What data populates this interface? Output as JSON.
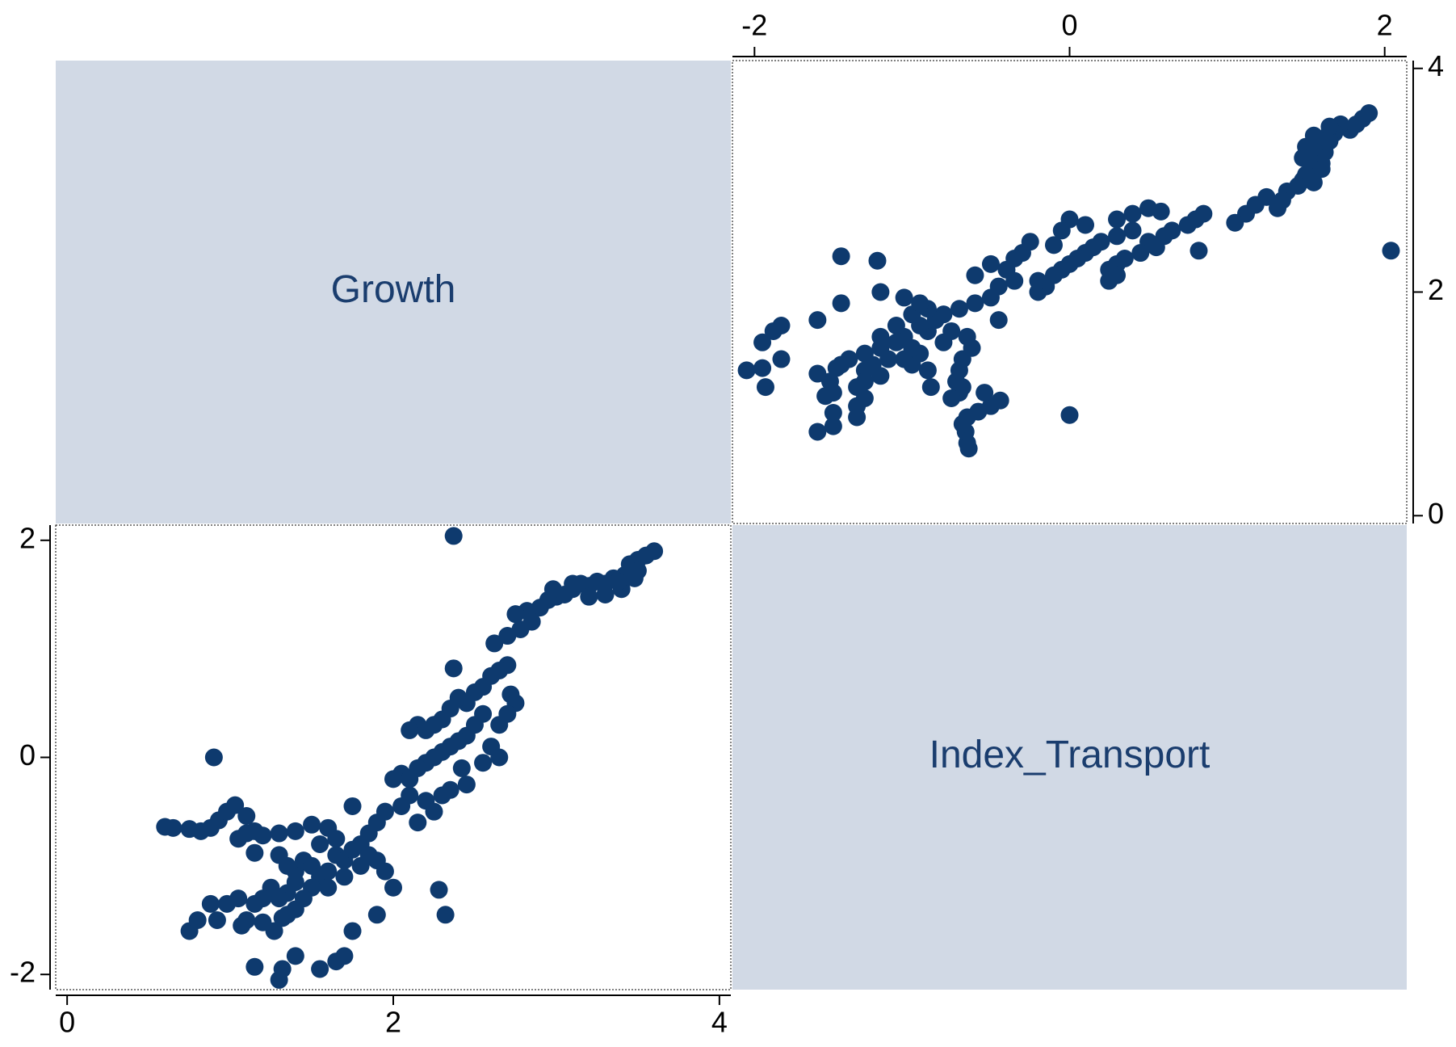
{
  "chart_data": {
    "type": "scatter-matrix",
    "color": "#0e3a6e",
    "box_color": "#d1d9e5",
    "variables": [
      {
        "label": "Growth",
        "lim": [
          -0.07,
          4.07
        ],
        "ticks": [
          0,
          2,
          4
        ],
        "values": [
          3.6,
          3.55,
          3.5,
          3.45,
          3.5,
          3.42,
          3.35,
          3.3,
          3.25,
          3.2,
          3.15,
          3.1,
          3.05,
          3.0,
          2.95,
          2.9,
          2.82,
          2.75,
          2.78,
          2.85,
          2.7,
          2.62,
          3.4,
          3.3,
          3.2,
          3.1,
          2.98,
          3.38,
          3.48,
          2.72,
          2.75,
          2.7,
          2.65,
          2.7,
          2.65,
          2.6,
          2.55,
          2.5,
          2.45,
          2.4,
          2.37,
          2.35,
          2.3,
          2.25,
          2.2,
          2.15,
          2.1,
          2.55,
          2.5,
          2.45,
          2.4,
          2.35,
          2.3,
          2.25,
          2.2,
          2.15,
          2.05,
          2.0,
          2.1,
          2.6,
          2.65,
          2.55,
          2.42,
          2.35,
          2.45,
          2.3,
          2.2,
          2.1,
          2.05,
          1.95,
          1.9,
          1.85,
          1.8,
          2.25,
          2.15,
          0.6,
          0.65,
          0.75,
          0.82,
          0.88,
          0.93,
          0.98,
          1.03,
          1.1,
          1.15,
          1.2,
          1.3,
          1.4,
          1.5,
          1.6,
          1.75,
          1.1,
          1.05,
          1.15,
          0.9,
          1.3,
          1.35,
          1.4,
          1.45,
          1.5,
          1.55,
          1.6,
          1.65,
          1.7,
          1.75,
          1.5,
          1.4,
          1.35,
          1.3,
          1.25,
          1.6,
          1.7,
          1.8,
          1.85,
          1.9,
          1.95,
          2.0,
          1.55,
          1.65,
          1.45,
          1.4,
          1.35,
          1.2,
          1.15,
          0.75,
          0.8,
          0.88,
          0.92,
          0.98,
          1.05,
          1.07,
          1.1,
          1.2,
          1.27,
          1.32,
          1.15,
          1.3,
          1.32,
          1.4,
          1.55,
          1.65,
          1.7,
          1.75,
          1.9,
          2.28,
          2.32,
          2.37
        ]
      },
      {
        "label": "Index_Transport",
        "lim": [
          -2.14,
          2.14
        ],
        "ticks": [
          -2,
          0,
          2
        ],
        "values": [
          1.9,
          1.86,
          1.82,
          1.78,
          1.72,
          1.68,
          1.65,
          1.6,
          1.62,
          1.58,
          1.6,
          1.55,
          1.5,
          1.48,
          1.45,
          1.38,
          1.35,
          1.32,
          1.18,
          1.25,
          1.12,
          1.05,
          1.55,
          1.5,
          1.48,
          1.6,
          1.55,
          1.62,
          1.65,
          0.58,
          0.5,
          0.4,
          0.3,
          0.85,
          0.8,
          0.75,
          0.65,
          0.6,
          0.5,
          0.55,
          0.82,
          0.45,
          0.35,
          0.3,
          0.25,
          0.3,
          0.25,
          0.4,
          0.3,
          0.2,
          0.15,
          0.1,
          0.05,
          0.0,
          -0.05,
          -0.1,
          -0.15,
          -0.2,
          -0.2,
          0.1,
          0.0,
          -0.05,
          -0.1,
          -0.3,
          -0.25,
          -0.35,
          -0.4,
          -0.35,
          -0.45,
          -0.5,
          -0.6,
          -0.7,
          -0.8,
          -0.5,
          -0.6,
          -0.64,
          -0.65,
          -0.66,
          -0.68,
          -0.65,
          -0.58,
          -0.5,
          -0.44,
          -0.7,
          -0.68,
          -0.72,
          -0.7,
          -0.68,
          -0.62,
          -0.65,
          -0.45,
          -0.54,
          -0.75,
          -0.88,
          0.0,
          -0.9,
          -1.0,
          -1.05,
          -0.95,
          -1.0,
          -1.1,
          -1.05,
          -0.9,
          -0.95,
          -0.85,
          -1.2,
          -1.15,
          -1.25,
          -1.3,
          -1.2,
          -1.2,
          -1.1,
          -1.0,
          -0.9,
          -0.95,
          -1.05,
          -1.2,
          -0.8,
          -0.75,
          -1.3,
          -1.4,
          -1.45,
          -1.3,
          -1.35,
          -1.6,
          -1.5,
          -1.35,
          -1.5,
          -1.35,
          -1.3,
          -1.55,
          -1.5,
          -1.52,
          -1.6,
          -1.48,
          -1.93,
          -2.05,
          -1.95,
          -1.83,
          -1.95,
          -1.88,
          -1.83,
          -1.6,
          -1.45,
          -1.22,
          -1.45,
          2.04
        ]
      }
    ]
  }
}
